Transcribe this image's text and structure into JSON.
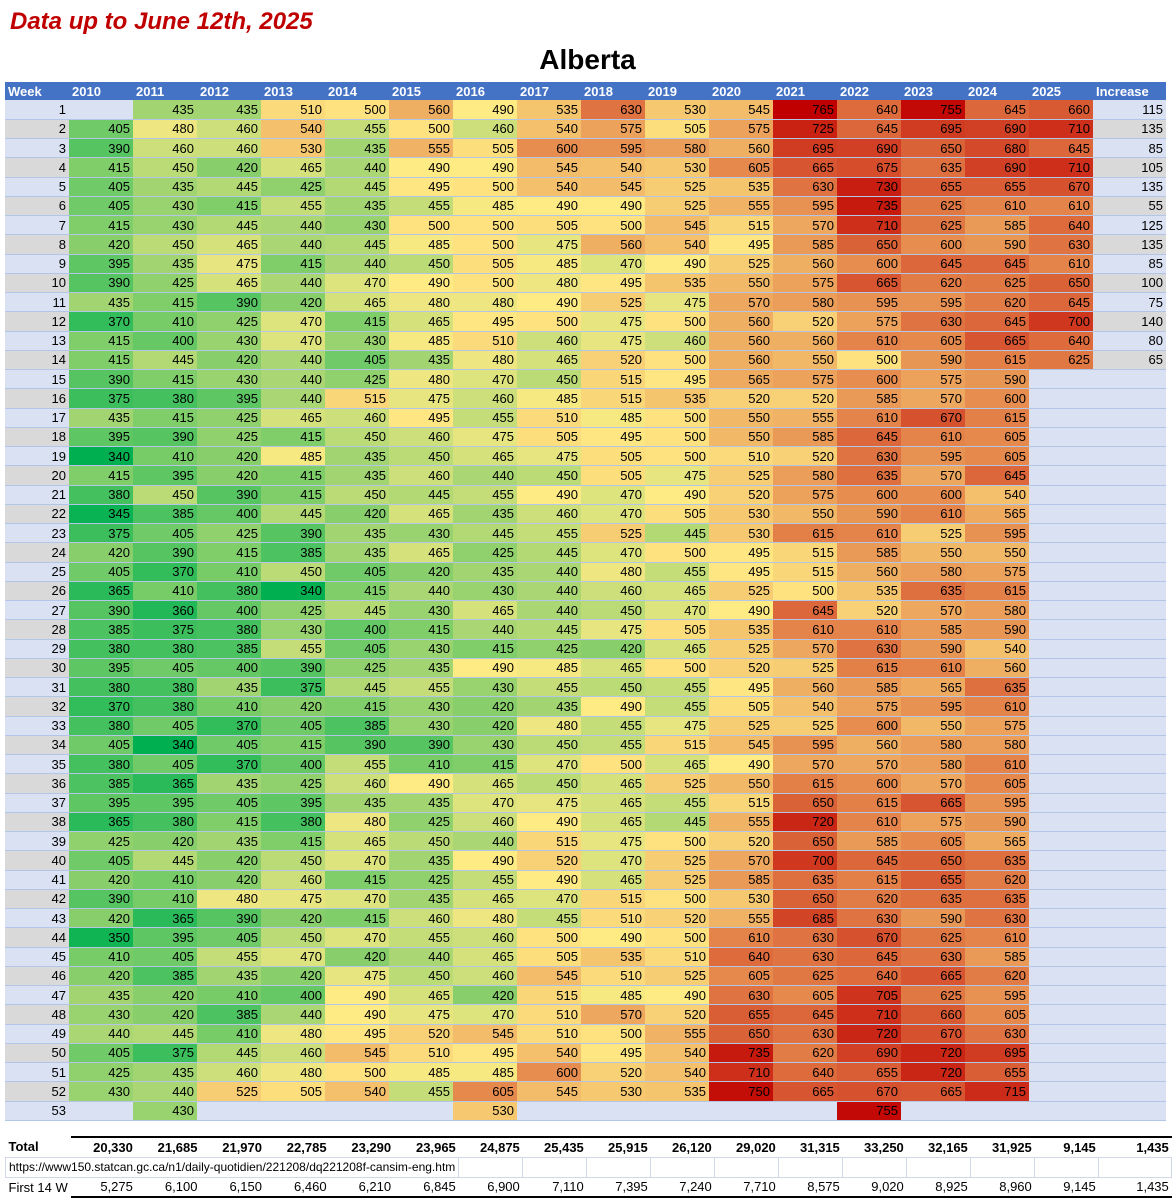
{
  "note": "Data up to June 12th, 2025",
  "title": "Alberta",
  "header": {
    "week": "Week",
    "years": [
      "2010",
      "2011",
      "2012",
      "2013",
      "2014",
      "2015",
      "2016",
      "2017",
      "2018",
      "2019",
      "2020",
      "2021",
      "2022",
      "2023",
      "2024",
      "2025"
    ],
    "increase": "Increase"
  },
  "colors": {
    "header": "#4472C4",
    "low": "#00B050",
    "mid": "#FFEB84",
    "high": "#C00000",
    "row_odd": "#D9E1F2",
    "row_even": "#D9D9D9",
    "note": "#C00000"
  },
  "chart_data": {
    "type": "heatmap",
    "title": "Alberta",
    "xlabel": "Year",
    "ylabel": "Week",
    "scale": {
      "min": 340,
      "mid": 490,
      "max": 765
    },
    "rows": [
      {
        "week": "1",
        "values": [
          null,
          435,
          435,
          510,
          500,
          560,
          490,
          535,
          630,
          530,
          545,
          765,
          640,
          755,
          645,
          660
        ],
        "increase": "115"
      },
      {
        "week": "2",
        "values": [
          405,
          480,
          460,
          540,
          455,
          500,
          460,
          540,
          575,
          505,
          575,
          725,
          645,
          695,
          690,
          710
        ],
        "increase": "135"
      },
      {
        "week": "3",
        "values": [
          390,
          460,
          460,
          530,
          435,
          555,
          505,
          600,
          595,
          580,
          560,
          695,
          690,
          650,
          680,
          645
        ],
        "increase": "85"
      },
      {
        "week": "4",
        "values": [
          415,
          450,
          420,
          465,
          440,
          490,
          490,
          545,
          540,
          530,
          605,
          665,
          675,
          635,
          690,
          710
        ],
        "increase": "105"
      },
      {
        "week": "5",
        "values": [
          405,
          435,
          445,
          425,
          445,
          495,
          500,
          540,
          545,
          525,
          535,
          630,
          730,
          655,
          655,
          670
        ],
        "increase": "135"
      },
      {
        "week": "6",
        "values": [
          405,
          430,
          415,
          455,
          435,
          455,
          485,
          490,
          490,
          525,
          555,
          595,
          735,
          625,
          610,
          610
        ],
        "increase": "55"
      },
      {
        "week": "7",
        "values": [
          415,
          430,
          445,
          440,
          430,
          500,
          500,
          505,
          500,
          545,
          515,
          570,
          710,
          625,
          585,
          640
        ],
        "increase": "125"
      },
      {
        "week": "8",
        "values": [
          420,
          450,
          465,
          440,
          445,
          485,
          500,
          475,
          560,
          540,
          495,
          585,
          650,
          600,
          590,
          630
        ],
        "increase": "135"
      },
      {
        "week": "9",
        "values": [
          395,
          435,
          475,
          415,
          440,
          450,
          505,
          485,
          470,
          490,
          525,
          560,
          600,
          645,
          645,
          610
        ],
        "increase": "85"
      },
      {
        "week": "10",
        "values": [
          390,
          425,
          465,
          440,
          470,
          490,
          500,
          480,
          495,
          535,
          550,
          575,
          665,
          620,
          625,
          650
        ],
        "increase": "100"
      },
      {
        "week": "11",
        "values": [
          435,
          415,
          390,
          420,
          465,
          480,
          480,
          490,
          525,
          475,
          570,
          580,
          595,
          595,
          620,
          645
        ],
        "increase": "75"
      },
      {
        "week": "12",
        "values": [
          370,
          410,
          425,
          470,
          415,
          465,
          495,
          500,
          475,
          500,
          560,
          520,
          575,
          630,
          645,
          700
        ],
        "increase": "140"
      },
      {
        "week": "13",
        "values": [
          415,
          400,
          430,
          470,
          430,
          485,
          510,
          460,
          475,
          460,
          560,
          560,
          610,
          605,
          665,
          640
        ],
        "increase": "80"
      },
      {
        "week": "14",
        "values": [
          415,
          445,
          420,
          440,
          405,
          435,
          480,
          465,
          520,
          500,
          560,
          550,
          500,
          590,
          615,
          625
        ],
        "increase": "65"
      },
      {
        "week": "15",
        "values": [
          390,
          415,
          430,
          440,
          425,
          480,
          470,
          450,
          515,
          495,
          565,
          575,
          600,
          575,
          590,
          null
        ],
        "increase": null
      },
      {
        "week": "16",
        "values": [
          375,
          380,
          395,
          440,
          515,
          475,
          460,
          485,
          515,
          535,
          520,
          520,
          585,
          570,
          600,
          null
        ],
        "increase": null
      },
      {
        "week": "17",
        "values": [
          435,
          415,
          425,
          465,
          460,
          495,
          455,
          510,
          485,
          500,
          550,
          555,
          610,
          670,
          615,
          null
        ],
        "increase": null
      },
      {
        "week": "18",
        "values": [
          395,
          390,
          425,
          415,
          450,
          460,
          475,
          505,
          495,
          500,
          550,
          585,
          645,
          610,
          605,
          null
        ],
        "increase": null
      },
      {
        "week": "19",
        "values": [
          340,
          410,
          420,
          485,
          435,
          450,
          465,
          475,
          505,
          500,
          510,
          520,
          630,
          595,
          605,
          null
        ],
        "increase": null
      },
      {
        "week": "20",
        "values": [
          415,
          395,
          420,
          415,
          435,
          460,
          440,
          450,
          505,
          475,
          525,
          580,
          635,
          570,
          645,
          null
        ],
        "increase": null
      },
      {
        "week": "21",
        "values": [
          380,
          450,
          390,
          415,
          450,
          445,
          455,
          490,
          470,
          490,
          520,
          575,
          600,
          600,
          540,
          null
        ],
        "increase": null
      },
      {
        "week": "22",
        "values": [
          345,
          385,
          400,
          445,
          420,
          465,
          435,
          460,
          470,
          505,
          530,
          550,
          590,
          610,
          565,
          null
        ],
        "increase": null
      },
      {
        "week": "23",
        "values": [
          375,
          405,
          425,
          390,
          435,
          430,
          445,
          455,
          525,
          445,
          530,
          615,
          610,
          525,
          595,
          null
        ],
        "increase": null
      },
      {
        "week": "24",
        "values": [
          420,
          390,
          415,
          385,
          435,
          465,
          425,
          445,
          470,
          500,
          495,
          515,
          585,
          550,
          550,
          null
        ],
        "increase": null
      },
      {
        "week": "25",
        "values": [
          405,
          370,
          410,
          450,
          405,
          420,
          435,
          440,
          480,
          455,
          495,
          515,
          560,
          580,
          575,
          null
        ],
        "increase": null
      },
      {
        "week": "26",
        "values": [
          365,
          410,
          380,
          340,
          415,
          440,
          430,
          440,
          460,
          465,
          525,
          500,
          535,
          635,
          615,
          null
        ],
        "increase": null
      },
      {
        "week": "27",
        "values": [
          390,
          360,
          400,
          425,
          445,
          430,
          465,
          440,
          450,
          470,
          490,
          645,
          520,
          570,
          580,
          null
        ],
        "increase": null
      },
      {
        "week": "28",
        "values": [
          385,
          375,
          380,
          430,
          400,
          415,
          440,
          445,
          475,
          505,
          535,
          610,
          610,
          585,
          590,
          null
        ],
        "increase": null
      },
      {
        "week": "29",
        "values": [
          380,
          380,
          385,
          455,
          405,
          430,
          415,
          425,
          420,
          465,
          525,
          570,
          630,
          590,
          540,
          null
        ],
        "increase": null
      },
      {
        "week": "30",
        "values": [
          395,
          405,
          400,
          390,
          425,
          435,
          490,
          485,
          465,
          500,
          520,
          525,
          615,
          610,
          560,
          null
        ],
        "increase": null
      },
      {
        "week": "31",
        "values": [
          380,
          380,
          435,
          375,
          445,
          455,
          430,
          455,
          450,
          455,
          495,
          560,
          585,
          565,
          635,
          null
        ],
        "increase": null
      },
      {
        "week": "32",
        "values": [
          370,
          380,
          410,
          420,
          415,
          430,
          420,
          435,
          490,
          455,
          505,
          540,
          575,
          595,
          610,
          null
        ],
        "increase": null
      },
      {
        "week": "33",
        "values": [
          380,
          405,
          370,
          405,
          385,
          430,
          420,
          480,
          455,
          475,
          525,
          525,
          600,
          550,
          575,
          null
        ],
        "increase": null
      },
      {
        "week": "34",
        "values": [
          405,
          340,
          405,
          415,
          390,
          390,
          430,
          450,
          455,
          515,
          545,
          595,
          560,
          580,
          580,
          null
        ],
        "increase": null
      },
      {
        "week": "35",
        "values": [
          380,
          405,
          370,
          400,
          455,
          410,
          415,
          470,
          500,
          465,
          490,
          570,
          570,
          580,
          610,
          null
        ],
        "increase": null
      },
      {
        "week": "36",
        "values": [
          385,
          365,
          435,
          425,
          460,
          490,
          465,
          450,
          465,
          525,
          550,
          615,
          600,
          570,
          605,
          null
        ],
        "increase": null
      },
      {
        "week": "37",
        "values": [
          395,
          395,
          405,
          395,
          435,
          435,
          470,
          475,
          465,
          455,
          515,
          650,
          615,
          665,
          595,
          null
        ],
        "increase": null
      },
      {
        "week": "38",
        "values": [
          365,
          380,
          415,
          380,
          480,
          425,
          460,
          490,
          465,
          445,
          555,
          720,
          610,
          575,
          590,
          null
        ],
        "increase": null
      },
      {
        "week": "39",
        "values": [
          425,
          420,
          435,
          415,
          465,
          450,
          440,
          515,
          475,
          500,
          520,
          650,
          585,
          605,
          565,
          null
        ],
        "increase": null
      },
      {
        "week": "40",
        "values": [
          405,
          445,
          420,
          450,
          470,
          435,
          490,
          520,
          470,
          525,
          570,
          700,
          645,
          650,
          635,
          null
        ],
        "increase": null
      },
      {
        "week": "41",
        "values": [
          420,
          410,
          420,
          460,
          415,
          425,
          455,
          490,
          465,
          525,
          585,
          635,
          615,
          655,
          620,
          null
        ],
        "increase": null
      },
      {
        "week": "42",
        "values": [
          390,
          410,
          480,
          475,
          470,
          435,
          465,
          470,
          515,
          500,
          530,
          650,
          620,
          635,
          635,
          null
        ],
        "increase": null
      },
      {
        "week": "43",
        "values": [
          420,
          365,
          390,
          420,
          415,
          460,
          480,
          455,
          510,
          520,
          555,
          685,
          630,
          590,
          630,
          null
        ],
        "increase": null
      },
      {
        "week": "44",
        "values": [
          350,
          395,
          405,
          450,
          470,
          455,
          460,
          500,
          490,
          500,
          610,
          630,
          670,
          625,
          610,
          null
        ],
        "increase": null
      },
      {
        "week": "45",
        "values": [
          410,
          405,
          455,
          470,
          420,
          440,
          465,
          505,
          535,
          510,
          640,
          630,
          645,
          630,
          585,
          null
        ],
        "increase": null
      },
      {
        "week": "46",
        "values": [
          420,
          385,
          435,
          420,
          475,
          450,
          460,
          545,
          510,
          525,
          605,
          625,
          640,
          665,
          620,
          null
        ],
        "increase": null
      },
      {
        "week": "47",
        "values": [
          435,
          420,
          410,
          400,
          490,
          465,
          420,
          515,
          485,
          490,
          630,
          605,
          705,
          625,
          595,
          null
        ],
        "increase": null
      },
      {
        "week": "48",
        "values": [
          430,
          420,
          385,
          440,
          490,
          475,
          470,
          510,
          570,
          520,
          655,
          645,
          710,
          660,
          605,
          null
        ],
        "increase": null
      },
      {
        "week": "49",
        "values": [
          440,
          445,
          410,
          480,
          495,
          520,
          545,
          510,
          500,
          555,
          650,
          630,
          720,
          670,
          630,
          null
        ],
        "increase": null
      },
      {
        "week": "50",
        "values": [
          405,
          375,
          445,
          460,
          545,
          510,
          495,
          540,
          495,
          540,
          735,
          620,
          690,
          720,
          695,
          null
        ],
        "increase": null
      },
      {
        "week": "51",
        "values": [
          425,
          435,
          460,
          480,
          500,
          485,
          485,
          600,
          520,
          540,
          710,
          640,
          655,
          720,
          655,
          null
        ],
        "increase": null
      },
      {
        "week": "52",
        "values": [
          430,
          440,
          525,
          505,
          540,
          455,
          605,
          545,
          530,
          535,
          750,
          665,
          670,
          665,
          715,
          null
        ],
        "increase": null
      },
      {
        "week": "53",
        "values": [
          null,
          430,
          null,
          null,
          null,
          null,
          530,
          null,
          null,
          null,
          null,
          null,
          755,
          null,
          null,
          null
        ],
        "increase": null
      }
    ]
  },
  "summary": {
    "total_label": "Total",
    "totals": [
      "20,330",
      "21,685",
      "21,970",
      "22,785",
      "23,290",
      "23,965",
      "24,875",
      "25,435",
      "25,915",
      "26,120",
      "29,020",
      "31,315",
      "33,250",
      "32,165",
      "31,925",
      "9,145",
      "1,435"
    ],
    "source_url": "https://www150.statcan.gc.ca/n1/daily-quotidien/221208/dq221208f-cansim-eng.htm",
    "first14_label": "First 14 W",
    "first14": [
      "5,275",
      "6,100",
      "6,150",
      "6,460",
      "6,210",
      "6,845",
      "6,900",
      "7,110",
      "7,395",
      "7,240",
      "7,710",
      "8,575",
      "9,020",
      "8,925",
      "8,960",
      "9,145",
      "1,435"
    ]
  }
}
